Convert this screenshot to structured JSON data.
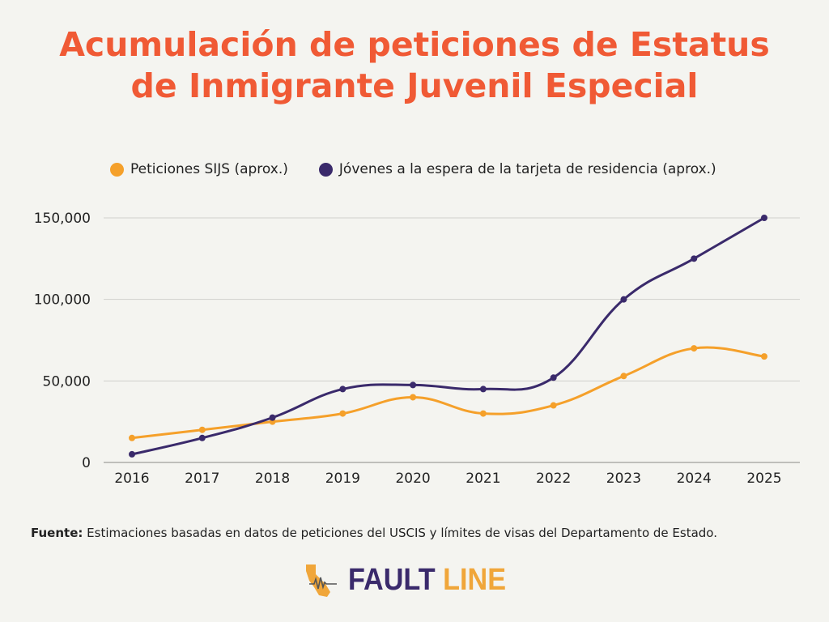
{
  "title": {
    "line1": "Acumulación de peticiones de Estatus",
    "line2": "de Inmigrante Juvenil Especial"
  },
  "legend": {
    "series1": "Peticiones SIJS (aprox.)",
    "series2": "Jóvenes a la espera de la tarjeta de residencia (aprox.)"
  },
  "colors": {
    "title": "#f05a35",
    "series1": "#f5a02a",
    "series2": "#3a2a6b",
    "grid": "#cfcfcb",
    "background": "#f4f4f0"
  },
  "source": {
    "label": "Fuente:",
    "text": "Estimaciones basadas en datos de peticiones del USCIS y límites de visas del Departamento de Estado."
  },
  "logo": {
    "word1": "FAULT",
    "word2": "LINE",
    "icon": "california-seismograph-icon"
  },
  "chart_data": {
    "type": "line",
    "categories": [
      "2016",
      "2017",
      "2018",
      "2019",
      "2020",
      "2021",
      "2022",
      "2023",
      "2024",
      "2025"
    ],
    "series": [
      {
        "name": "Peticiones SIJS (aprox.)",
        "values": [
          15000,
          20000,
          25000,
          30000,
          40000,
          30000,
          35000,
          53000,
          70000,
          65000
        ]
      },
      {
        "name": "Jóvenes a la espera de la tarjeta de residencia (aprox.)",
        "values": [
          5000,
          15000,
          27500,
          45000,
          47500,
          45000,
          52000,
          100000,
          125000,
          150000
        ]
      }
    ],
    "yticks": [
      0,
      50000,
      100000,
      150000
    ],
    "ytick_labels": [
      "0",
      "50,000",
      "100,000",
      "150,000"
    ],
    "ylim": [
      0,
      150000
    ],
    "xlabel": "",
    "ylabel": "",
    "grid": true,
    "legend_position": "top-left"
  }
}
